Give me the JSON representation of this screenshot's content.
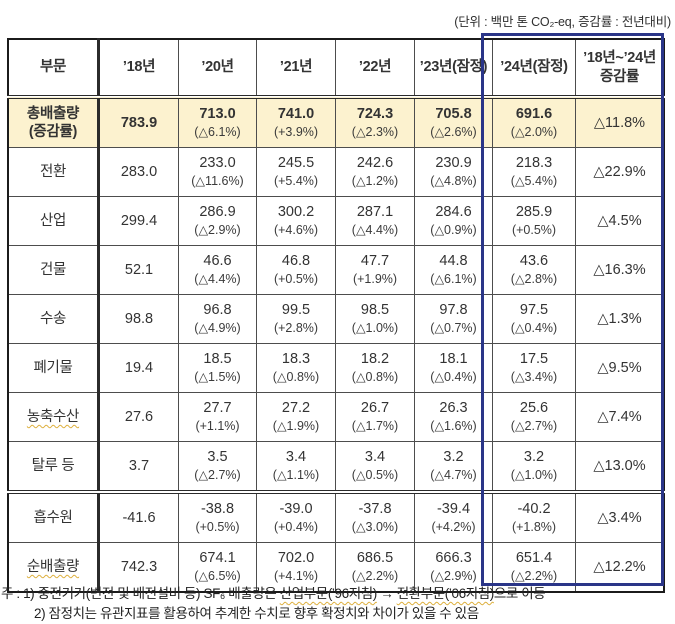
{
  "unit_note": "(단위 : 백만 톤 CO₂-eq, 증감률 : 전년대비)",
  "colors": {
    "highlight_row": "#FCF2CF",
    "emphasis_border": "#2A3588"
  },
  "table": {
    "headers": [
      "부문",
      "’18년",
      "’20년",
      "’21년",
      "’22년",
      "’23년(잠정)",
      "’24년(잠정)",
      "’18년~’24년\n증감률"
    ],
    "rows": [
      {
        "label": "총배출량\n(증감률)",
        "base": "783.9",
        "years": [
          {
            "value": "713.0",
            "change": "(△6.1%)"
          },
          {
            "value": "741.0",
            "change": "(+3.9%)"
          },
          {
            "value": "724.3",
            "change": "(△2.3%)"
          },
          {
            "value": "705.8",
            "change": "(△2.6%)"
          },
          {
            "value": "691.6",
            "change": "(△2.0%)"
          }
        ],
        "total_change": "△11.8%",
        "highlight": true,
        "bold": true
      },
      {
        "label": "전환",
        "base": "283.0",
        "years": [
          {
            "value": "233.0",
            "change": "(△11.6%)"
          },
          {
            "value": "245.5",
            "change": "(+5.4%)"
          },
          {
            "value": "242.6",
            "change": "(△1.2%)"
          },
          {
            "value": "230.9",
            "change": "(△4.8%)"
          },
          {
            "value": "218.3",
            "change": "(△5.4%)"
          }
        ],
        "total_change": "△22.9%"
      },
      {
        "label": "산업",
        "base": "299.4",
        "years": [
          {
            "value": "286.9",
            "change": "(△2.9%)"
          },
          {
            "value": "300.2",
            "change": "(+4.6%)"
          },
          {
            "value": "287.1",
            "change": "(△4.4%)"
          },
          {
            "value": "284.6",
            "change": "(△0.9%)"
          },
          {
            "value": "285.9",
            "change": "(+0.5%)"
          }
        ],
        "total_change": "△4.5%"
      },
      {
        "label": "건물",
        "base": "52.1",
        "years": [
          {
            "value": "46.6",
            "change": "(△4.4%)"
          },
          {
            "value": "46.8",
            "change": "(+0.5%)"
          },
          {
            "value": "47.7",
            "change": "(+1.9%)"
          },
          {
            "value": "44.8",
            "change": "(△6.1%)"
          },
          {
            "value": "43.6",
            "change": "(△2.8%)"
          }
        ],
        "total_change": "△16.3%"
      },
      {
        "label": "수송",
        "base": "98.8",
        "years": [
          {
            "value": "96.8",
            "change": "(△4.9%)"
          },
          {
            "value": "99.5",
            "change": "(+2.8%)"
          },
          {
            "value": "98.5",
            "change": "(△1.0%)"
          },
          {
            "value": "97.8",
            "change": "(△0.7%)"
          },
          {
            "value": "97.5",
            "change": "(△0.4%)"
          }
        ],
        "total_change": "△1.3%"
      },
      {
        "label": "폐기물",
        "base": "19.4",
        "years": [
          {
            "value": "18.5",
            "change": "(△1.5%)"
          },
          {
            "value": "18.3",
            "change": "(△0.8%)"
          },
          {
            "value": "18.2",
            "change": "(△0.8%)"
          },
          {
            "value": "18.1",
            "change": "(△0.4%)"
          },
          {
            "value": "17.5",
            "change": "(△3.4%)"
          }
        ],
        "total_change": "△9.5%"
      },
      {
        "label": "농축수산",
        "base": "27.6",
        "years": [
          {
            "value": "27.7",
            "change": "(+1.1%)"
          },
          {
            "value": "27.2",
            "change": "(△1.9%)"
          },
          {
            "value": "26.7",
            "change": "(△1.7%)"
          },
          {
            "value": "26.3",
            "change": "(△1.6%)"
          },
          {
            "value": "25.6",
            "change": "(△2.7%)"
          }
        ],
        "total_change": "△7.4%",
        "wavy": true
      },
      {
        "label": "탈루 등",
        "base": "3.7",
        "years": [
          {
            "value": "3.5",
            "change": "(△2.7%)"
          },
          {
            "value": "3.4",
            "change": "(△1.1%)"
          },
          {
            "value": "3.4",
            "change": "(△0.5%)"
          },
          {
            "value": "3.2",
            "change": "(△4.7%)"
          },
          {
            "value": "3.2",
            "change": "(△1.0%)"
          }
        ],
        "total_change": "△13.0%"
      },
      {
        "label": "흡수원",
        "base": "-41.6",
        "years": [
          {
            "value": "-38.8",
            "change": "(+0.5%)"
          },
          {
            "value": "-39.0",
            "change": "(+0.4%)"
          },
          {
            "value": "-37.8",
            "change": "(△3.0%)"
          },
          {
            "value": "-39.4",
            "change": "(+4.2%)"
          },
          {
            "value": "-40.2",
            "change": "(+1.8%)"
          }
        ],
        "total_change": "△3.4%",
        "section_break": true
      },
      {
        "label": "순배출량",
        "base": "742.3",
        "years": [
          {
            "value": "674.1",
            "change": "(△6.5%)"
          },
          {
            "value": "702.0",
            "change": "(+4.1%)"
          },
          {
            "value": "686.5",
            "change": "(△2.2%)"
          },
          {
            "value": "666.3",
            "change": "(△2.9%)"
          },
          {
            "value": "651.4",
            "change": "(△2.2%)"
          }
        ],
        "total_change": "△12.2%",
        "wavy": true
      }
    ]
  },
  "footnotes": {
    "line1": {
      "prefix": "주 : 1) 중전기기(변전 및 배전설비 등) SF₆ 배출량은 ",
      "term1": "산업부문(’96지침)",
      "arrow": " → ",
      "term2": "전환부문(’06지침)",
      "suffix": "으로 이동"
    },
    "line2": "2) 잠정치는 유관지표를 활용하여 추계한 수치로 향후 확정치와 차이가 있을 수 있음"
  }
}
